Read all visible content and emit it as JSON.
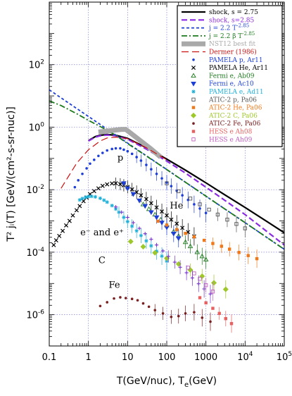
{
  "chart_data": {
    "type": "scatter",
    "xlabel": "T(GeV/nuc), T",
    "xlabel_sub": "e",
    "xlabel_tail": "(GeV)",
    "ylabel": "T² jᵢ(T) [GeV/(cm²-s-sr-nuc)]",
    "xscale": "log",
    "yscale": "log",
    "xlim": [
      0.1,
      100000
    ],
    "ylim": [
      1e-07,
      10000
    ],
    "grid": true,
    "legend_position": "top-right",
    "x_ticks": [
      {
        "v": 0.1,
        "label": "0.1"
      },
      {
        "v": 1,
        "label": "1"
      },
      {
        "v": 10,
        "label": "10"
      },
      {
        "v": 100,
        "label": "100"
      },
      {
        "v": 1000,
        "label": "1000"
      },
      {
        "v": 10000,
        "label": "10",
        "sup": "4"
      },
      {
        "v": 100000,
        "label": "10",
        "sup": "5"
      }
    ],
    "y_ticks": [
      {
        "v": 1e-06,
        "label": "10",
        "sup": "-6"
      },
      {
        "v": 0.0001,
        "label": "10",
        "sup": "-4"
      },
      {
        "v": 0.01,
        "label": "10",
        "sup": "-2"
      },
      {
        "v": 1,
        "label": "10",
        "sup": "0"
      },
      {
        "v": 100,
        "label": "10",
        "sup": "2"
      }
    ],
    "annotations": [
      {
        "text": "p",
        "x": 5.5,
        "y": 0.085
      },
      {
        "text": "He",
        "x": 120,
        "y": 0.0025
      },
      {
        "text": "e⁻ and e⁺",
        "x": 0.62,
        "y": 0.00035
      },
      {
        "text": "C",
        "x": 1.8,
        "y": 4.5e-05
      },
      {
        "text": "Fe",
        "x": 3.3,
        "y": 7.2e-06
      }
    ],
    "series": [
      {
        "name": "shock, s = 2.75",
        "style": "line",
        "color": "#000000",
        "dash": "",
        "width": 2.2,
        "x": [
          1,
          1.5,
          2,
          3,
          5,
          10,
          30,
          100,
          300,
          1000,
          3000,
          10000,
          100000
        ],
        "y": [
          0.37,
          0.5,
          0.55,
          0.58,
          0.55,
          0.44,
          0.22,
          0.095,
          0.042,
          0.0165,
          0.0069,
          0.0027,
          0.00042
        ]
      },
      {
        "name": "shock, s=2.85",
        "style": "line",
        "color": "#8a2be2",
        "dash": "8,4",
        "width": 2.2,
        "x": [
          1,
          1.5,
          2,
          3,
          5,
          10,
          30,
          100,
          300,
          1000,
          3000,
          10000,
          100000
        ],
        "y": [
          0.36,
          0.48,
          0.53,
          0.56,
          0.53,
          0.41,
          0.2,
          0.082,
          0.034,
          0.012,
          0.0046,
          0.0016,
          0.00017
        ]
      },
      {
        "name": "j = 2.2 T",
        "name_sup": "-2.85",
        "style": "line",
        "color": "#1d3fd8",
        "dash": "4,3",
        "width": 1.8,
        "x": [
          0.1,
          1,
          10,
          100,
          1000,
          10000,
          100000
        ],
        "y": [
          15.6,
          2.2,
          0.31,
          0.044,
          0.0062,
          0.00088,
          0.000124
        ]
      },
      {
        "name": "j = 2.2 β T",
        "name_sup": "-2.85",
        "style": "line",
        "color": "#1c7a1c",
        "dash": "8,3,2,3",
        "width": 1.8,
        "x": [
          0.1,
          0.2,
          0.5,
          1,
          2,
          5,
          10,
          100,
          1000,
          10000,
          100000
        ],
        "y": [
          6.9,
          4.9,
          2.7,
          1.65,
          1.05,
          0.55,
          0.3,
          0.044,
          0.0062,
          0.00088,
          0.000124
        ]
      },
      {
        "name": "NST12 best fit",
        "style": "band",
        "color": "#a9a9a9",
        "dash": "",
        "width": 7,
        "x": [
          1.8,
          7,
          9,
          40,
          70
        ],
        "y": [
          0.7,
          0.85,
          0.85,
          0.2,
          0.11
        ]
      },
      {
        "name": "Dermer (1986)",
        "style": "line",
        "color": "#cc1111",
        "dash": "10,5",
        "width": 1.2,
        "x": [
          0.2,
          0.3,
          0.5,
          1,
          2,
          3,
          5,
          10,
          30,
          100
        ],
        "y": [
          0.011,
          0.025,
          0.07,
          0.19,
          0.36,
          0.45,
          0.48,
          0.43,
          0.22,
          0.09
        ]
      },
      {
        "name": "PAMELA p, Ar11",
        "style": "points",
        "marker": "dot",
        "color": "#1d3fd8",
        "x": [
          0.45,
          0.55,
          0.7,
          0.9,
          1.1,
          1.4,
          1.8,
          2.3,
          3,
          4,
          5,
          6.5,
          8,
          10,
          13,
          17,
          22,
          30,
          40,
          55,
          75,
          100,
          130,
          180,
          250,
          350,
          500,
          700,
          1000
        ],
        "y": [
          0.012,
          0.02,
          0.032,
          0.048,
          0.068,
          0.09,
          0.12,
          0.15,
          0.18,
          0.2,
          0.21,
          0.21,
          0.19,
          0.17,
          0.14,
          0.11,
          0.085,
          0.062,
          0.045,
          0.032,
          0.023,
          0.017,
          0.013,
          0.0092,
          0.0066,
          0.0047,
          0.0034,
          0.0025,
          0.0018
        ]
      },
      {
        "name": "PAMELA He, Ar11",
        "style": "points",
        "marker": "x",
        "color": "#000000",
        "x": [
          0.13,
          0.15,
          0.18,
          0.22,
          0.27,
          0.33,
          0.4,
          0.5,
          0.6,
          0.75,
          0.9,
          1.1,
          1.4,
          1.8,
          2.3,
          3,
          4,
          5,
          6.5,
          8,
          10,
          13,
          17,
          22,
          30,
          40,
          55,
          75,
          100,
          130,
          180,
          250,
          350,
          500
        ],
        "y": [
          0.00017,
          0.00024,
          0.00033,
          0.00048,
          0.00072,
          0.001,
          0.0015,
          0.0022,
          0.003,
          0.0043,
          0.0056,
          0.0072,
          0.009,
          0.011,
          0.0132,
          0.0148,
          0.0158,
          0.016,
          0.015,
          0.0138,
          0.0122,
          0.0102,
          0.0083,
          0.0066,
          0.005,
          0.0037,
          0.0027,
          0.002,
          0.0015,
          0.0011,
          0.00082,
          0.0006,
          0.00044,
          0.00032
        ]
      },
      {
        "name": "Fermi e, Ab09",
        "style": "points",
        "marker": "triangle",
        "color": "#1c7a1c",
        "x": [
          25,
          35,
          50,
          70,
          100,
          150,
          200,
          300,
          400,
          600,
          800,
          1000
        ],
        "y": [
          0.0034,
          0.0024,
          0.0016,
          0.0011,
          0.00072,
          0.00046,
          0.00033,
          0.00021,
          0.000155,
          0.0001,
          7.4e-05,
          5.8e-05
        ]
      },
      {
        "name": "Fermi e, Ac10",
        "style": "points",
        "marker": "tridown",
        "color": "#1d3fd8",
        "x": [
          8,
          10,
          14,
          20,
          28,
          40,
          55,
          75,
          100,
          150,
          200
        ],
        "y": [
          0.016,
          0.011,
          0.0072,
          0.0045,
          0.003,
          0.0019,
          0.0013,
          0.00088,
          0.00062,
          0.00039,
          0.00028
        ]
      },
      {
        "name": "PAMELA e, Ad11",
        "style": "points",
        "marker": "star",
        "color": "#1fb0d8",
        "x": [
          0.6,
          0.7,
          0.85,
          1,
          1.2,
          1.5,
          2,
          2.5,
          3,
          4,
          5,
          6,
          8,
          10,
          13,
          17,
          22,
          30,
          40,
          55,
          75,
          100
        ],
        "y": [
          0.0047,
          0.0052,
          0.0057,
          0.006,
          0.0061,
          0.0059,
          0.0053,
          0.0046,
          0.004,
          0.0031,
          0.0024,
          0.0019,
          0.0013,
          0.00095,
          0.00068,
          0.00048,
          0.00034,
          0.00023,
          0.00016,
          0.000107,
          7.5e-05,
          5.2e-05
        ]
      },
      {
        "name": "ATIC-2 p, Pa06",
        "style": "points",
        "marker": "square-open",
        "color": "#555555",
        "x": [
          100,
          200,
          400,
          700,
          1200,
          2000,
          3500,
          6000,
          10000
        ],
        "y": [
          0.016,
          0.0089,
          0.0052,
          0.0034,
          0.0023,
          0.0016,
          0.0011,
          0.0008,
          0.00058
        ]
      },
      {
        "name": "ATIC-2 He, Pa06",
        "style": "points",
        "marker": "square",
        "color": "#f07818",
        "x": [
          60,
          100,
          180,
          300,
          500,
          900,
          1500,
          2500,
          4000,
          7000,
          12000,
          20000
        ],
        "y": [
          0.00098,
          0.00074,
          0.00053,
          0.0004,
          0.00031,
          0.00024,
          0.00019,
          0.000155,
          0.000125,
          9.8e-05,
          7.8e-05,
          6.2e-05
        ]
      },
      {
        "name": "ATIC-2 C, Pa06",
        "style": "points",
        "marker": "diamond",
        "color": "#9ec82a",
        "x": [
          12,
          25,
          50,
          100,
          200,
          400,
          800,
          1600,
          3200
        ],
        "y": [
          0.00022,
          0.00015,
          9.6e-05,
          6.4e-05,
          4.2e-05,
          2.7e-05,
          1.7e-05,
          1.05e-05,
          6.5e-06
        ]
      },
      {
        "name": "ATIC-2 Fe, Pa06",
        "style": "points",
        "marker": "dot",
        "color": "#7a2020",
        "x": [
          2,
          3,
          4.5,
          6.5,
          9,
          13,
          18,
          25,
          35,
          50,
          80,
          130,
          200,
          300,
          500,
          800,
          1300
        ],
        "y": [
          1.9e-06,
          2.5e-06,
          3.3e-06,
          3.6e-06,
          3.4e-06,
          3.2e-06,
          2.9e-06,
          2.3e-06,
          1.8e-06,
          1.4e-06,
          1.1e-06,
          8.5e-07,
          9e-07,
          1.1e-06,
          1.2e-06,
          8e-07,
          6e-07
        ]
      },
      {
        "name": "HESS e Ah08",
        "style": "points",
        "marker": "square",
        "color": "#e86060",
        "x": [
          700,
          1000,
          1500,
          2200,
          3200,
          4500
        ],
        "y": [
          3.5e-06,
          2.4e-06,
          1.6e-06,
          1.1e-06,
          7.5e-07,
          5.2e-07
        ]
      },
      {
        "name": "HESS e Ah09",
        "style": "points",
        "marker": "square-open",
        "color": "#c060c0",
        "x": [
          350,
          500,
          700,
          1000,
          1500
        ],
        "y": [
          3.2e-05,
          2.1e-05,
          1.4e-05,
          8.8e-06,
          5.5e-06
        ]
      },
      {
        "name": "",
        "style": "points",
        "marker": "cross",
        "color": "#7733cc",
        "x": [
          5,
          7,
          10,
          14,
          20,
          28,
          40,
          55,
          80,
          110,
          160,
          220,
          320,
          450,
          650,
          900,
          1300
        ],
        "y": [
          0.0028,
          0.0019,
          0.0013,
          0.00088,
          0.00058,
          0.00039,
          0.00026,
          0.00017,
          0.00011,
          7.3e-05,
          4.8e-05,
          3.3e-05,
          2.2e-05,
          1.5e-05,
          9.8e-06,
          6.7e-06,
          4.6e-06
        ]
      }
    ]
  }
}
